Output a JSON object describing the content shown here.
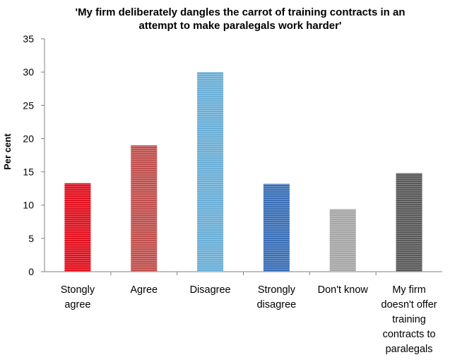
{
  "chart_data": {
    "type": "bar",
    "title": [
      "'My firm deliberately dangles the carrot of training contracts in an",
      "attempt to make paralegals work harder'"
    ],
    "ylabel": "Per cent",
    "xlabel": "",
    "ylim": [
      0,
      35
    ],
    "yticks": [
      0,
      5,
      10,
      15,
      20,
      25,
      30,
      35
    ],
    "grid": false,
    "legend": "none",
    "categories": [
      [
        "Stongly",
        "agree"
      ],
      [
        "Agree"
      ],
      [
        "Disagree"
      ],
      [
        "Strongly",
        "disagree"
      ],
      [
        "Don't know"
      ],
      [
        "My firm",
        "doesn't offer",
        "training",
        "contracts to",
        "paralegals"
      ]
    ],
    "values": [
      13.3,
      19.0,
      30.0,
      13.2,
      9.4,
      14.8
    ],
    "colors": [
      "#e0101e",
      "#c0504d",
      "#6baed6",
      "#3b6fb6",
      "#a6a6a6",
      "#595959"
    ]
  }
}
